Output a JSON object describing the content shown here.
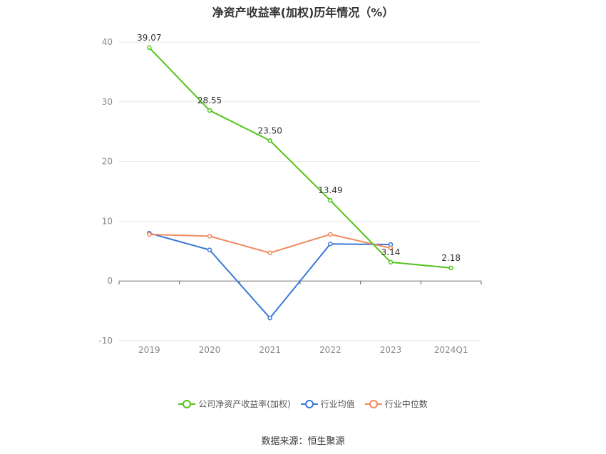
{
  "chart_data": {
    "type": "line",
    "title": "净资产收益率(加权)历年情况（%）",
    "categories": [
      "2019",
      "2020",
      "2021",
      "2022",
      "2023",
      "2024Q1"
    ],
    "ylim": [
      -10,
      40
    ],
    "yticks": [
      -10,
      0,
      10,
      20,
      30,
      40
    ],
    "grid": true,
    "legend_position": "bottom",
    "series": [
      {
        "name": "公司净资产收益率(加权)",
        "color": "#52c41a",
        "values": [
          39.07,
          28.55,
          23.5,
          13.49,
          3.14,
          2.18
        ],
        "labels": [
          "39.07",
          "28.55",
          "23.50",
          "13.49",
          "3.14",
          "2.18"
        ]
      },
      {
        "name": "行业均值",
        "color": "#3a78d8",
        "values": [
          8.0,
          5.2,
          -6.2,
          6.2,
          6.1,
          null
        ]
      },
      {
        "name": "行业中位数",
        "color": "#f08a5d",
        "values": [
          7.8,
          7.5,
          4.7,
          7.8,
          5.5,
          null
        ]
      }
    ]
  },
  "source": "数据来源：恒生聚源"
}
